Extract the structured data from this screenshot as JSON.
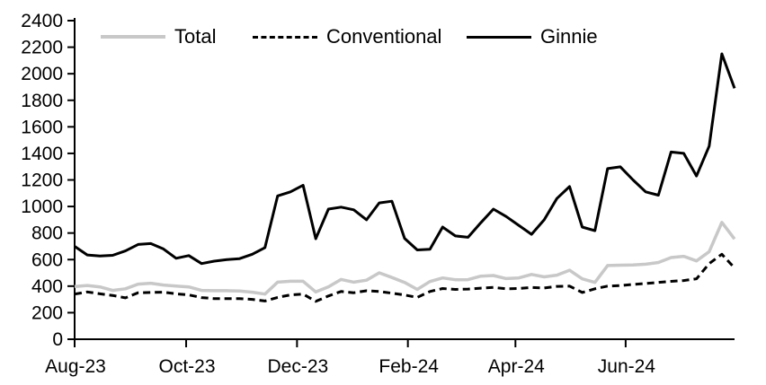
{
  "chart_data": {
    "type": "line",
    "title": "",
    "xlabel": "",
    "ylabel": "",
    "y_axis": {
      "min": 0,
      "max": 2400,
      "step": 200,
      "tick_labels": [
        "0",
        "200",
        "400",
        "600",
        "800",
        "1000",
        "1200",
        "1400",
        "1600",
        "1800",
        "2000",
        "2200",
        "2400"
      ]
    },
    "x_axis": {
      "ticks": [
        {
          "label": "Aug-23",
          "pos": 0.0
        },
        {
          "label": "Oct-23",
          "pos": 0.169
        },
        {
          "label": "Dec-23",
          "pos": 0.337
        },
        {
          "label": "Feb-24",
          "pos": 0.505
        },
        {
          "label": "Apr-24",
          "pos": 0.668
        },
        {
          "label": "Jun-24",
          "pos": 0.835
        }
      ]
    },
    "legend_position": "top",
    "grid": false,
    "series": [
      {
        "name": "Total",
        "color": "#c8c8c8",
        "style": "solid",
        "values": [
          397,
          405,
          394,
          368,
          380,
          415,
          422,
          408,
          400,
          394,
          368,
          366,
          366,
          363,
          354,
          340,
          430,
          437,
          437,
          356,
          395,
          450,
          430,
          445,
          500,
          465,
          428,
          375,
          435,
          462,
          448,
          449,
          475,
          480,
          457,
          462,
          488,
          470,
          483,
          520,
          455,
          428,
          555,
          558,
          560,
          565,
          578,
          615,
          625,
          590,
          660,
          880,
          755
        ]
      },
      {
        "name": "Conventional",
        "color": "#000000",
        "style": "dashed",
        "values": [
          340,
          356,
          342,
          330,
          312,
          350,
          352,
          354,
          342,
          334,
          314,
          306,
          306,
          306,
          300,
          288,
          315,
          334,
          340,
          285,
          326,
          360,
          350,
          365,
          360,
          347,
          333,
          315,
          360,
          382,
          375,
          378,
          385,
          390,
          380,
          382,
          390,
          386,
          398,
          400,
          352,
          380,
          400,
          404,
          413,
          420,
          428,
          436,
          442,
          455,
          570,
          640,
          537
        ]
      },
      {
        "name": "Ginnie",
        "color": "#000000",
        "style": "solid",
        "values": [
          700,
          635,
          627,
          632,
          665,
          714,
          721,
          680,
          610,
          630,
          570,
          588,
          600,
          607,
          640,
          690,
          1080,
          1110,
          1160,
          757,
          980,
          995,
          975,
          900,
          1027,
          1040,
          760,
          673,
          678,
          845,
          778,
          768,
          877,
          980,
          925,
          858,
          790,
          900,
          1060,
          1150,
          845,
          818,
          1285,
          1299,
          1200,
          1110,
          1085,
          1410,
          1400,
          1230,
          1455,
          2150,
          1890
        ]
      }
    ]
  }
}
